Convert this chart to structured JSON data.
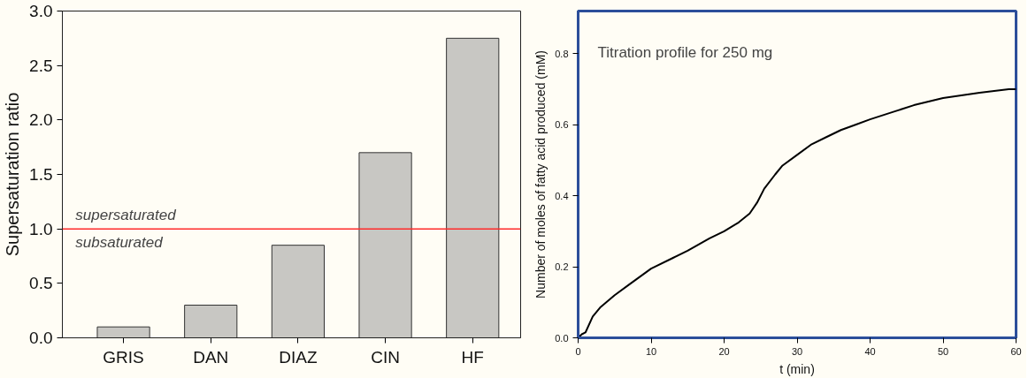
{
  "chart_data": [
    {
      "type": "bar",
      "ylabel": "Supersaturation ratio",
      "categories": [
        "GRIS",
        "DAN",
        "DIAZ",
        "CIN",
        "HF"
      ],
      "values": [
        0.1,
        0.3,
        0.85,
        1.7,
        2.75
      ],
      "color": "#c8c7c3",
      "ylim": [
        0,
        3
      ],
      "yticks": [
        {
          "value": 0,
          "label": "0.0"
        },
        {
          "value": 0.5,
          "label": "0.5"
        },
        {
          "value": 1,
          "label": "1.0"
        },
        {
          "value": 1.5,
          "label": "1.5"
        },
        {
          "value": 2,
          "label": "2.0"
        },
        {
          "value": 2.5,
          "label": "2.5"
        },
        {
          "value": 3,
          "label": "3.0"
        }
      ],
      "ref_lines": [
        {
          "axis": "y",
          "value": 1,
          "color": "#ff2a2a"
        }
      ],
      "annotations": [
        "supersaturated",
        "subsaturated"
      ],
      "grid": false
    },
    {
      "type": "line",
      "title": "Titration profile for 250 mg",
      "xlabel": "t (min)",
      "ylabel": "Number of moles of fatty acid produced (mM)",
      "color": "#000000",
      "x": [
        0,
        0.5,
        1,
        2,
        3,
        5,
        7,
        10,
        13,
        15,
        18,
        20,
        22,
        23.5,
        24.5,
        25.5,
        27,
        28,
        30,
        32,
        34,
        36,
        38,
        40,
        43,
        46,
        50,
        55,
        59,
        60
      ],
      "values": [
        0.0,
        0.01,
        0.015,
        0.06,
        0.085,
        0.12,
        0.15,
        0.195,
        0.225,
        0.245,
        0.28,
        0.3,
        0.325,
        0.35,
        0.38,
        0.42,
        0.46,
        0.485,
        0.515,
        0.545,
        0.565,
        0.585,
        0.6,
        0.615,
        0.635,
        0.655,
        0.675,
        0.69,
        0.7,
        0.7
      ],
      "xlim": [
        0,
        60
      ],
      "xticks": [
        0,
        10,
        20,
        30,
        40,
        50,
        60
      ],
      "ylim": [
        0,
        0.92
      ],
      "yticks": [
        {
          "value": 0,
          "label": "0.0"
        },
        {
          "value": 0.2,
          "label": "0.2"
        },
        {
          "value": 0.4,
          "label": "0.4"
        },
        {
          "value": 0.6,
          "label": "0.6"
        },
        {
          "value": 0.8,
          "label": "0.8"
        }
      ],
      "grid": false,
      "marker": "none",
      "line_style": "solid"
    }
  ]
}
